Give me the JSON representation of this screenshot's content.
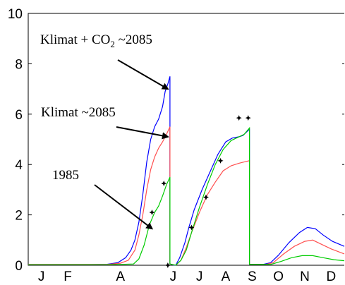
{
  "chart_data": {
    "type": "line",
    "xlabel": "",
    "ylabel": "",
    "ylim": [
      0,
      10
    ],
    "xlim": [
      0,
      12
    ],
    "x_tick_labels": [
      {
        "label": "J",
        "x": 0.5
      },
      {
        "label": "F",
        "x": 1.5
      },
      {
        "label": "A",
        "x": 3.5
      },
      {
        "label": "J",
        "x": 5.5
      },
      {
        "label": "J",
        "x": 6.5
      },
      {
        "label": "A",
        "x": 7.5
      },
      {
        "label": "S",
        "x": 8.5
      },
      {
        "label": "O",
        "x": 9.5
      },
      {
        "label": "N",
        "x": 10.5
      },
      {
        "label": "D",
        "x": 11.5
      }
    ],
    "y_ticks": [
      0,
      2,
      4,
      6,
      8,
      10
    ],
    "series": [
      {
        "name": "",
        "color": "#0000ff",
        "points": [
          [
            0,
            0.03
          ],
          [
            2,
            0.03
          ],
          [
            3,
            0.04
          ],
          [
            3.4,
            0.1
          ],
          [
            3.7,
            0.3
          ],
          [
            3.9,
            0.6
          ],
          [
            4.05,
            1.0
          ],
          [
            4.2,
            1.7
          ],
          [
            4.35,
            2.8
          ],
          [
            4.5,
            4.1
          ],
          [
            4.65,
            5.0
          ],
          [
            4.8,
            5.5
          ],
          [
            4.95,
            5.8
          ],
          [
            5.1,
            6.3
          ],
          [
            5.2,
            6.9
          ],
          [
            5.3,
            7.2
          ],
          [
            5.38,
            7.5
          ],
          [
            5.38,
            0.05
          ],
          [
            5.55,
            0.0
          ],
          [
            5.6,
            0.0
          ],
          [
            5.75,
            0.3
          ],
          [
            5.95,
            0.9
          ],
          [
            6.1,
            1.5
          ],
          [
            6.3,
            2.2
          ],
          [
            6.6,
            3.0
          ],
          [
            6.9,
            3.7
          ],
          [
            7.2,
            4.4
          ],
          [
            7.5,
            4.9
          ],
          [
            7.75,
            5.05
          ],
          [
            8.0,
            5.1
          ],
          [
            8.15,
            5.15
          ],
          [
            8.4,
            5.4
          ],
          [
            8.4,
            0.03
          ],
          [
            8.9,
            0.03
          ],
          [
            9.2,
            0.1
          ],
          [
            9.5,
            0.4
          ],
          [
            9.9,
            0.9
          ],
          [
            10.3,
            1.3
          ],
          [
            10.6,
            1.5
          ],
          [
            10.9,
            1.45
          ],
          [
            11.2,
            1.2
          ],
          [
            11.55,
            0.95
          ],
          [
            12,
            0.75
          ]
        ]
      },
      {
        "name": "",
        "color": "#ff5050",
        "points": [
          [
            0,
            0.03
          ],
          [
            2,
            0.03
          ],
          [
            3,
            0.03
          ],
          [
            3.5,
            0.08
          ],
          [
            3.8,
            0.2
          ],
          [
            4.05,
            0.6
          ],
          [
            4.2,
            1.2
          ],
          [
            4.35,
            2.0
          ],
          [
            4.5,
            3.0
          ],
          [
            4.65,
            3.8
          ],
          [
            4.8,
            4.3
          ],
          [
            4.95,
            4.65
          ],
          [
            5.1,
            4.9
          ],
          [
            5.25,
            5.2
          ],
          [
            5.38,
            5.5
          ],
          [
            5.38,
            0.05
          ],
          [
            5.6,
            0.0
          ],
          [
            5.8,
            0.2
          ],
          [
            6.0,
            0.7
          ],
          [
            6.2,
            1.3
          ],
          [
            6.5,
            2.1
          ],
          [
            6.8,
            2.8
          ],
          [
            7.1,
            3.3
          ],
          [
            7.4,
            3.75
          ],
          [
            7.7,
            3.95
          ],
          [
            8.0,
            4.05
          ],
          [
            8.2,
            4.1
          ],
          [
            8.4,
            4.15
          ],
          [
            8.4,
            0.03
          ],
          [
            9.0,
            0.03
          ],
          [
            9.3,
            0.1
          ],
          [
            9.7,
            0.45
          ],
          [
            10.1,
            0.75
          ],
          [
            10.5,
            0.95
          ],
          [
            10.8,
            1.0
          ],
          [
            11.1,
            0.85
          ],
          [
            11.5,
            0.65
          ],
          [
            12,
            0.45
          ]
        ]
      },
      {
        "name": "",
        "color": "#00cc00",
        "points": [
          [
            0,
            0.02
          ],
          [
            3,
            0.02
          ],
          [
            4.0,
            0.05
          ],
          [
            4.2,
            0.25
          ],
          [
            4.4,
            0.8
          ],
          [
            4.6,
            1.6
          ],
          [
            4.8,
            2.1
          ],
          [
            4.95,
            2.35
          ],
          [
            5.1,
            2.75
          ],
          [
            5.25,
            3.2
          ],
          [
            5.38,
            3.5
          ],
          [
            5.38,
            0.05
          ],
          [
            5.6,
            0.0
          ],
          [
            5.8,
            0.2
          ],
          [
            6.0,
            0.6
          ],
          [
            6.2,
            1.3
          ],
          [
            6.5,
            2.3
          ],
          [
            6.8,
            3.2
          ],
          [
            7.1,
            4.0
          ],
          [
            7.4,
            4.6
          ],
          [
            7.7,
            4.95
          ],
          [
            8.0,
            5.1
          ],
          [
            8.2,
            5.2
          ],
          [
            8.4,
            5.45
          ],
          [
            8.4,
            0.03
          ],
          [
            9.2,
            0.03
          ],
          [
            9.6,
            0.15
          ],
          [
            10.0,
            0.3
          ],
          [
            10.4,
            0.38
          ],
          [
            10.8,
            0.38
          ],
          [
            11.2,
            0.3
          ],
          [
            11.6,
            0.22
          ],
          [
            12,
            0.18
          ]
        ]
      }
    ],
    "observations": [
      [
        4.7,
        2.1
      ],
      [
        5.15,
        3.25
      ],
      [
        5.3,
        0.0
      ],
      [
        6.2,
        1.5
      ],
      [
        6.75,
        2.7
      ],
      [
        7.3,
        4.15
      ],
      [
        8.0,
        5.85
      ],
      [
        8.35,
        5.85
      ]
    ],
    "annotations": [
      {
        "text": "Klimat + CO",
        "subscript": "2",
        "suffix": " ~2085",
        "arrow_to": [
          5.3,
          7.0
        ]
      },
      {
        "text": "Klimat ~2085",
        "arrow_to": [
          5.3,
          5.1
        ]
      },
      {
        "text": "1985",
        "arrow_to": [
          4.7,
          1.45
        ]
      }
    ]
  }
}
